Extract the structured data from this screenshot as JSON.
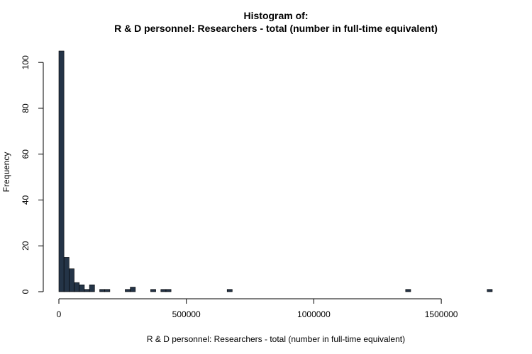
{
  "chart_data": {
    "type": "bar",
    "title_line1": "Histogram of:",
    "title_line2": "R & D personnel: Researchers - total (number in full-time equivalent)",
    "xlabel": "R & D personnel: Researchers - total (number in full-time equivalent)",
    "ylabel": "Frequency",
    "bin_width": 20000,
    "xlim": [
      0,
      1700000
    ],
    "ylim": [
      0,
      105
    ],
    "x_ticks": [
      0,
      500000,
      1000000,
      1500000
    ],
    "x_tick_labels": [
      "0",
      "500000",
      "1000000",
      "1500000"
    ],
    "y_ticks": [
      0,
      20,
      40,
      60,
      80,
      100
    ],
    "y_tick_labels": [
      "0",
      "20",
      "40",
      "60",
      "80",
      "100"
    ],
    "bar_color": "#243447",
    "bins": [
      {
        "start": 0,
        "end": 20000,
        "count": 105
      },
      {
        "start": 20000,
        "end": 40000,
        "count": 15
      },
      {
        "start": 40000,
        "end": 60000,
        "count": 10
      },
      {
        "start": 60000,
        "end": 80000,
        "count": 4
      },
      {
        "start": 80000,
        "end": 100000,
        "count": 3
      },
      {
        "start": 100000,
        "end": 120000,
        "count": 1
      },
      {
        "start": 120000,
        "end": 140000,
        "count": 3
      },
      {
        "start": 140000,
        "end": 160000,
        "count": 0
      },
      {
        "start": 160000,
        "end": 180000,
        "count": 1
      },
      {
        "start": 180000,
        "end": 200000,
        "count": 1
      },
      {
        "start": 260000,
        "end": 280000,
        "count": 1
      },
      {
        "start": 280000,
        "end": 300000,
        "count": 2
      },
      {
        "start": 360000,
        "end": 380000,
        "count": 1
      },
      {
        "start": 400000,
        "end": 420000,
        "count": 1
      },
      {
        "start": 420000,
        "end": 440000,
        "count": 1
      },
      {
        "start": 660000,
        "end": 680000,
        "count": 1
      },
      {
        "start": 1360000,
        "end": 1380000,
        "count": 1
      },
      {
        "start": 1680000,
        "end": 1700000,
        "count": 1
      }
    ]
  }
}
